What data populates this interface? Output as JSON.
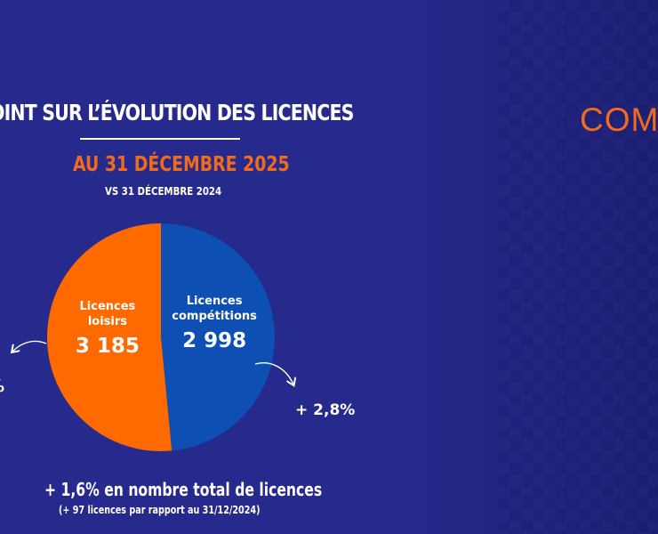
{
  "heading": {
    "title": "OINT SUR L’ÉVOLUTION DES LICENCES",
    "subtitle": "AU 31 DÉCEMBRE 2025",
    "comparison": "VS 31 DÉCEMBRE 2024"
  },
  "right_panel": {
    "text": "COM"
  },
  "colors": {
    "background": "#262a8c",
    "loisirs": "#ff6a00",
    "competitions": "#0d4fb3",
    "accent": "#f26b1d"
  },
  "chart_data": {
    "type": "pie",
    "slices": [
      {
        "label": "Licences loisirs",
        "label_lines": [
          "Licences",
          "loisirs"
        ],
        "value": 3185,
        "value_label": "3 185",
        "change_label": "%",
        "color": "#ff6a00"
      },
      {
        "label": "Licences compétitions",
        "label_lines": [
          "Licences",
          "compétitions"
        ],
        "value": 2998,
        "value_label": "2 998",
        "change_label": "+ 2,8%",
        "color": "#0d4fb3"
      }
    ],
    "total_change": "+ 1,6% en nombre total de licences",
    "total_change_detail": "(+ 97 licences par rapport au 31/12/2024)"
  }
}
